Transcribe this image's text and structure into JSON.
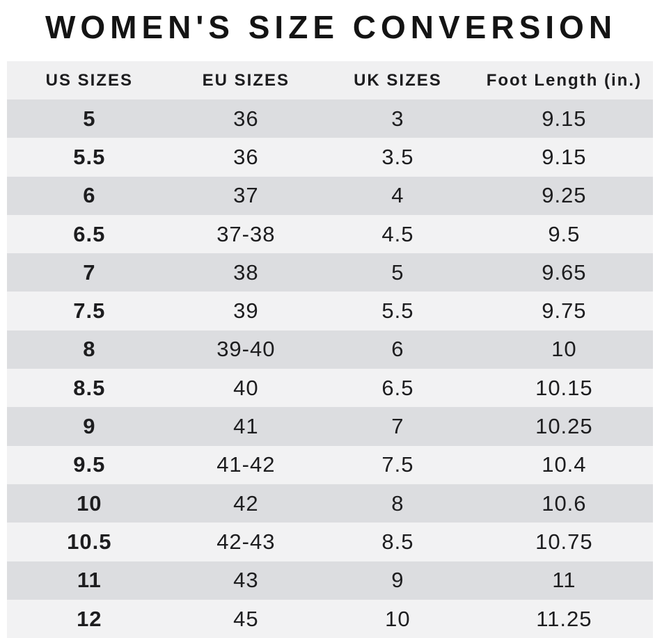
{
  "title": "WOMEN'S SIZE CONVERSION",
  "chart_data": {
    "type": "table",
    "title": "WOMEN'S SIZE CONVERSION",
    "columns": [
      "US SIZES",
      "EU SIZES",
      "UK SIZES",
      "Foot Length (in.)"
    ],
    "rows": [
      [
        "5",
        "36",
        "3",
        "9.15"
      ],
      [
        "5.5",
        "36",
        "3.5",
        "9.15"
      ],
      [
        "6",
        "37",
        "4",
        "9.25"
      ],
      [
        "6.5",
        "37-38",
        "4.5",
        "9.5"
      ],
      [
        "7",
        "38",
        "5",
        "9.65"
      ],
      [
        "7.5",
        "39",
        "5.5",
        "9.75"
      ],
      [
        "8",
        "39-40",
        "6",
        "10"
      ],
      [
        "8.5",
        "40",
        "6.5",
        "10.15"
      ],
      [
        "9",
        "41",
        "7",
        "10.25"
      ],
      [
        "9.5",
        "41-42",
        "7.5",
        "10.4"
      ],
      [
        "10",
        "42",
        "8",
        "10.6"
      ],
      [
        "10.5",
        "42-43",
        "8.5",
        "10.75"
      ],
      [
        "11",
        "43",
        "9",
        "11"
      ],
      [
        "12",
        "45",
        "10",
        "11.25"
      ]
    ]
  },
  "colors": {
    "page_bg": "#ffffff",
    "header_bg": "#f0f0f1",
    "row_dark": "#dcdde0",
    "row_light": "#f2f2f3",
    "text": "#1d1d1f",
    "title_text": "#141414"
  }
}
